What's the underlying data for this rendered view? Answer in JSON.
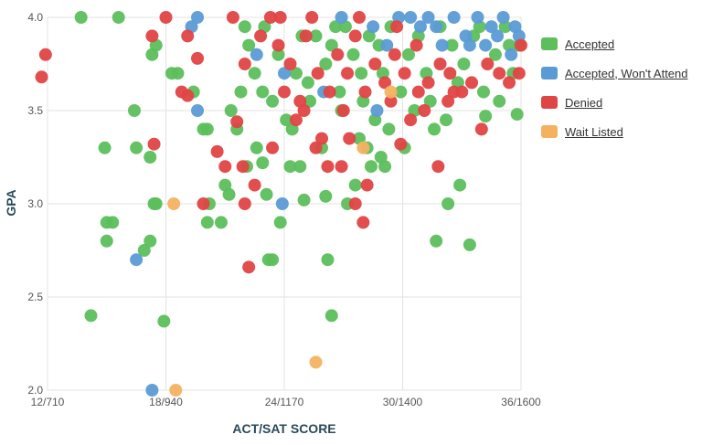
{
  "chart_data": {
    "type": "scatter",
    "xlabel": "ACT/SAT SCORE",
    "ylabel": "GPA",
    "xlim": [
      12,
      36
    ],
    "ylim": [
      2.0,
      4.0
    ],
    "x_ticks": [
      {
        "value": 12,
        "label": "12/710"
      },
      {
        "value": 18,
        "label": "18/940"
      },
      {
        "value": 24,
        "label": "24/1170"
      },
      {
        "value": 30,
        "label": "30/1400"
      },
      {
        "value": 36,
        "label": "36/1600"
      }
    ],
    "y_ticks": [
      {
        "value": 2.0,
        "label": "2.0"
      },
      {
        "value": 2.5,
        "label": "2.5"
      },
      {
        "value": 3.0,
        "label": "3.0"
      },
      {
        "value": 3.5,
        "label": "3.5"
      },
      {
        "value": 4.0,
        "label": "4.0"
      }
    ],
    "grid": "on",
    "legend_placement": "right",
    "series": [
      {
        "name": "Accepted",
        "color": "#5cbf5c",
        "points": [
          [
            13.7,
            4.0
          ],
          [
            15.6,
            4.0
          ],
          [
            14.9,
            3.3
          ],
          [
            16.5,
            3.3
          ],
          [
            17.3,
            3.8
          ],
          [
            17.5,
            3.85
          ],
          [
            18.6,
            3.7
          ],
          [
            18.3,
            3.7
          ],
          [
            16.4,
            3.5
          ],
          [
            17.2,
            3.25
          ],
          [
            17.5,
            3.0
          ],
          [
            17.4,
            3.0
          ],
          [
            15.0,
            2.9
          ],
          [
            15.3,
            2.9
          ],
          [
            15.0,
            2.8
          ],
          [
            17.2,
            2.8
          ],
          [
            16.9,
            2.75
          ],
          [
            14.2,
            2.4
          ],
          [
            17.9,
            2.37
          ],
          [
            19.4,
            3.6
          ],
          [
            19.9,
            3.4
          ],
          [
            20.1,
            3.4
          ],
          [
            20.2,
            3.0
          ],
          [
            20.1,
            2.9
          ],
          [
            20.8,
            2.9
          ],
          [
            21.0,
            3.1
          ],
          [
            21.2,
            3.05
          ],
          [
            22.6,
            3.3
          ],
          [
            22.9,
            3.22
          ],
          [
            23.1,
            3.05
          ],
          [
            23.4,
            2.7
          ],
          [
            23.2,
            2.7
          ],
          [
            23.8,
            2.9
          ],
          [
            24.3,
            3.2
          ],
          [
            24.8,
            3.2
          ],
          [
            25.0,
            3.02
          ],
          [
            26.1,
            3.04
          ],
          [
            26.2,
            2.7
          ],
          [
            26.4,
            2.4
          ],
          [
            27.2,
            3.0
          ],
          [
            27.6,
            3.1
          ],
          [
            28.2,
            3.3
          ],
          [
            28.9,
            3.25
          ],
          [
            29.1,
            3.2
          ],
          [
            29.3,
            3.4
          ],
          [
            28.4,
            3.2
          ],
          [
            31.7,
            2.8
          ],
          [
            32.3,
            3.0
          ],
          [
            32.9,
            3.1
          ],
          [
            33.4,
            2.78
          ],
          [
            34.2,
            3.47
          ],
          [
            35.8,
            3.48
          ],
          [
            31.6,
            3.4
          ],
          [
            32.2,
            3.45
          ],
          [
            22.2,
            3.85
          ],
          [
            22.5,
            3.7
          ],
          [
            22.9,
            3.6
          ],
          [
            23.4,
            3.55
          ],
          [
            23.7,
            3.8
          ],
          [
            24.1,
            3.45
          ],
          [
            24.6,
            3.7
          ],
          [
            25.2,
            3.65
          ],
          [
            25.6,
            3.9
          ],
          [
            26.1,
            3.75
          ],
          [
            26.4,
            3.85
          ],
          [
            26.8,
            3.6
          ],
          [
            27.1,
            3.95
          ],
          [
            27.5,
            3.8
          ],
          [
            27.9,
            3.7
          ],
          [
            28.3,
            3.9
          ],
          [
            28.8,
            3.85
          ],
          [
            29.4,
            3.95
          ],
          [
            29.9,
            3.6
          ],
          [
            30.3,
            3.8
          ],
          [
            30.8,
            3.9
          ],
          [
            31.2,
            3.7
          ],
          [
            31.9,
            3.95
          ],
          [
            32.5,
            3.85
          ],
          [
            33.1,
            3.75
          ],
          [
            33.6,
            3.9
          ],
          [
            34.1,
            3.6
          ],
          [
            34.7,
            3.8
          ],
          [
            35.2,
            3.95
          ],
          [
            35.6,
            3.7
          ],
          [
            35.9,
            3.85
          ],
          [
            25.3,
            3.55
          ],
          [
            26.9,
            3.5
          ],
          [
            28.6,
            3.45
          ],
          [
            30.6,
            3.5
          ],
          [
            32.8,
            3.65
          ],
          [
            21.8,
            3.6
          ],
          [
            22.0,
            3.95
          ],
          [
            21.6,
            3.4
          ],
          [
            22.1,
            3.2
          ],
          [
            27.8,
            3.35
          ],
          [
            25.9,
            3.3
          ],
          [
            24.4,
            3.4
          ],
          [
            30.1,
            3.3
          ],
          [
            31.4,
            3.55
          ],
          [
            34.9,
            3.55
          ],
          [
            23.0,
            3.95
          ],
          [
            24.9,
            3.9
          ],
          [
            26.6,
            3.95
          ],
          [
            29.0,
            3.7
          ],
          [
            33.9,
            3.95
          ],
          [
            35.4,
            3.85
          ],
          [
            28.0,
            3.55
          ],
          [
            21.3,
            3.5
          ]
        ]
      },
      {
        "name": "Accepted, Won't Attend",
        "color": "#5b9bd5",
        "points": [
          [
            19.6,
            4.0
          ],
          [
            19.3,
            3.95
          ],
          [
            19.6,
            3.5
          ],
          [
            16.5,
            2.7
          ],
          [
            23.9,
            3.0
          ],
          [
            17.3,
            2.0
          ],
          [
            26.0,
            3.6
          ],
          [
            28.7,
            3.5
          ],
          [
            24.0,
            3.7
          ],
          [
            28.5,
            3.95
          ],
          [
            29.8,
            4.0
          ],
          [
            30.9,
            3.95
          ],
          [
            31.7,
            3.95
          ],
          [
            32.6,
            4.0
          ],
          [
            33.2,
            3.9
          ],
          [
            33.8,
            4.0
          ],
          [
            34.5,
            3.95
          ],
          [
            35.1,
            4.0
          ],
          [
            35.7,
            3.95
          ],
          [
            35.9,
            3.9
          ],
          [
            32.0,
            3.85
          ],
          [
            34.2,
            3.85
          ],
          [
            35.5,
            3.8
          ],
          [
            30.4,
            4.0
          ],
          [
            26.9,
            4.0
          ],
          [
            29.2,
            3.85
          ],
          [
            31.3,
            4.0
          ],
          [
            33.4,
            3.85
          ],
          [
            34.8,
            3.9
          ],
          [
            22.6,
            3.8
          ]
        ]
      },
      {
        "name": "Denied",
        "color": "#e04545",
        "points": [
          [
            11.9,
            3.8
          ],
          [
            11.7,
            3.68
          ],
          [
            17.3,
            3.9
          ],
          [
            18.0,
            4.0
          ],
          [
            18.8,
            3.6
          ],
          [
            19.1,
            3.58
          ],
          [
            19.1,
            3.9
          ],
          [
            19.6,
            3.78
          ],
          [
            19.9,
            3.0
          ],
          [
            20.6,
            3.28
          ],
          [
            21.0,
            3.2
          ],
          [
            21.6,
            3.44
          ],
          [
            21.9,
            3.2
          ],
          [
            22.2,
            2.66
          ],
          [
            22.0,
            3.0
          ],
          [
            22.5,
            3.1
          ],
          [
            23.4,
            3.3
          ],
          [
            24.0,
            3.6
          ],
          [
            24.6,
            3.45
          ],
          [
            25.0,
            3.5
          ],
          [
            25.6,
            3.3
          ],
          [
            25.9,
            3.35
          ],
          [
            26.2,
            3.2
          ],
          [
            26.9,
            3.2
          ],
          [
            27.3,
            3.35
          ],
          [
            27.6,
            3.0
          ],
          [
            28.0,
            2.9
          ],
          [
            28.2,
            3.1
          ],
          [
            29.9,
            3.32
          ],
          [
            30.4,
            3.45
          ],
          [
            30.8,
            3.6
          ],
          [
            31.8,
            3.2
          ],
          [
            32.6,
            3.6
          ],
          [
            34.0,
            3.4
          ],
          [
            35.9,
            3.7
          ],
          [
            36.0,
            3.85
          ],
          [
            17.4,
            3.32
          ],
          [
            22.8,
            3.9
          ],
          [
            23.3,
            4.0
          ],
          [
            23.7,
            3.85
          ],
          [
            24.3,
            3.75
          ],
          [
            25.1,
            3.9
          ],
          [
            25.7,
            3.7
          ],
          [
            26.3,
            3.6
          ],
          [
            26.7,
            3.8
          ],
          [
            27.2,
            3.7
          ],
          [
            27.6,
            3.9
          ],
          [
            28.1,
            3.6
          ],
          [
            28.6,
            3.75
          ],
          [
            29.1,
            3.65
          ],
          [
            29.6,
            3.8
          ],
          [
            30.1,
            3.7
          ],
          [
            30.7,
            3.85
          ],
          [
            31.3,
            3.65
          ],
          [
            31.9,
            3.75
          ],
          [
            32.4,
            3.7
          ],
          [
            33.0,
            3.6
          ],
          [
            33.5,
            3.65
          ],
          [
            34.3,
            3.75
          ],
          [
            34.9,
            3.7
          ],
          [
            35.4,
            3.65
          ],
          [
            21.4,
            4.0
          ],
          [
            22.0,
            3.75
          ],
          [
            24.8,
            3.55
          ],
          [
            27.0,
            3.5
          ],
          [
            29.4,
            3.55
          ],
          [
            31.1,
            3.5
          ],
          [
            32.3,
            3.55
          ],
          [
            23.8,
            4.0
          ],
          [
            25.4,
            4.0
          ],
          [
            27.8,
            4.0
          ],
          [
            29.7,
            3.95
          ]
        ]
      },
      {
        "name": "Wait Listed",
        "color": "#f4b261",
        "points": [
          [
            18.4,
            3.0
          ],
          [
            18.5,
            2.0
          ],
          [
            25.6,
            2.15
          ],
          [
            28.0,
            3.3
          ],
          [
            29.4,
            3.6
          ]
        ]
      }
    ]
  }
}
